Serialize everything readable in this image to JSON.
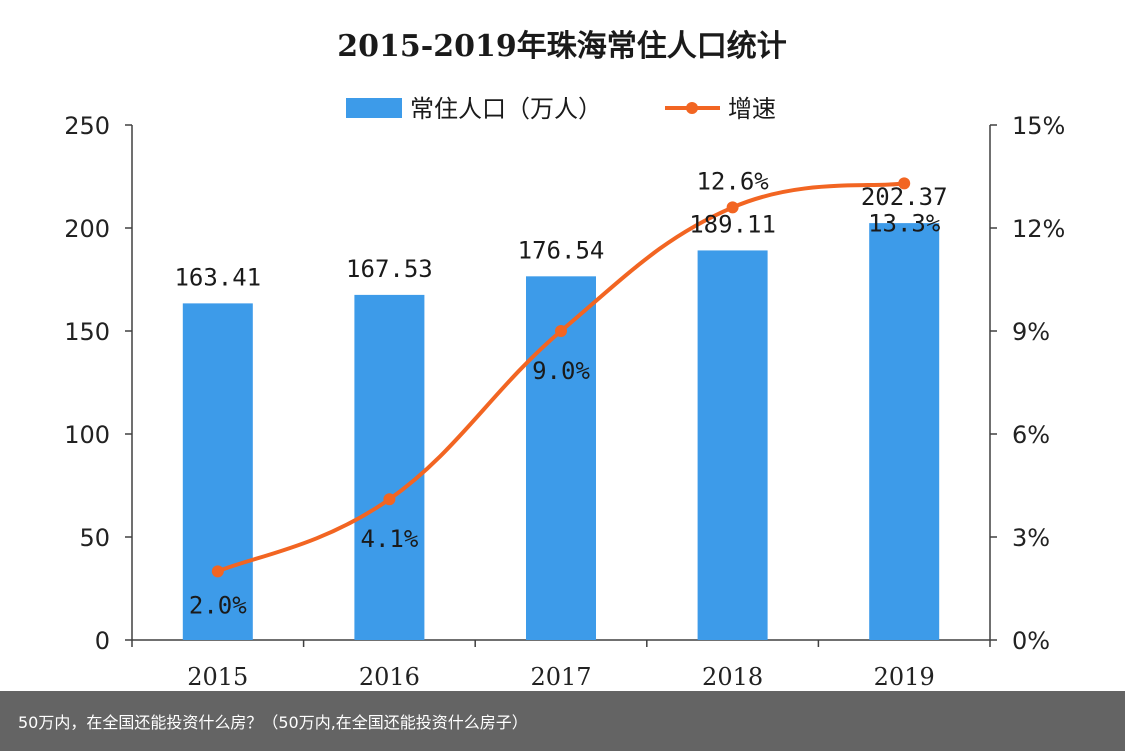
{
  "chart_data": {
    "type": "bar",
    "title": "2015-2019年珠海常住人口统计",
    "categories": [
      "2015",
      "2016",
      "2017",
      "2018",
      "2019"
    ],
    "series": [
      {
        "name": "常住人口（万人）",
        "kind": "bar",
        "axis": "left",
        "values": [
          163.41,
          167.53,
          176.54,
          189.11,
          202.37
        ],
        "labels": [
          "163.41",
          "167.53",
          "176.54",
          "189.11",
          "202.37"
        ]
      },
      {
        "name": "增速",
        "kind": "line",
        "axis": "right",
        "values": [
          2.0,
          4.1,
          9.0,
          12.6,
          13.3
        ],
        "labels": [
          "2.0%",
          "4.1%",
          "9.0%",
          "12.6%",
          "13.3%"
        ]
      }
    ],
    "left_axis": {
      "range": [
        0,
        250
      ],
      "ticks": [
        "0",
        "50",
        "100",
        "150",
        "200",
        "250"
      ]
    },
    "right_axis": {
      "range": [
        0,
        15
      ],
      "ticks": [
        "0%",
        "3%",
        "6%",
        "9%",
        "12%",
        "15%"
      ]
    },
    "legend": "top-center",
    "grid": false
  },
  "colors": {
    "bar": "#3d9be9",
    "line": "#f26522",
    "axis": "#404040"
  },
  "caption": "50万内，在全国还能投资什么房？（50万内,在全国还能投资什么房子）"
}
